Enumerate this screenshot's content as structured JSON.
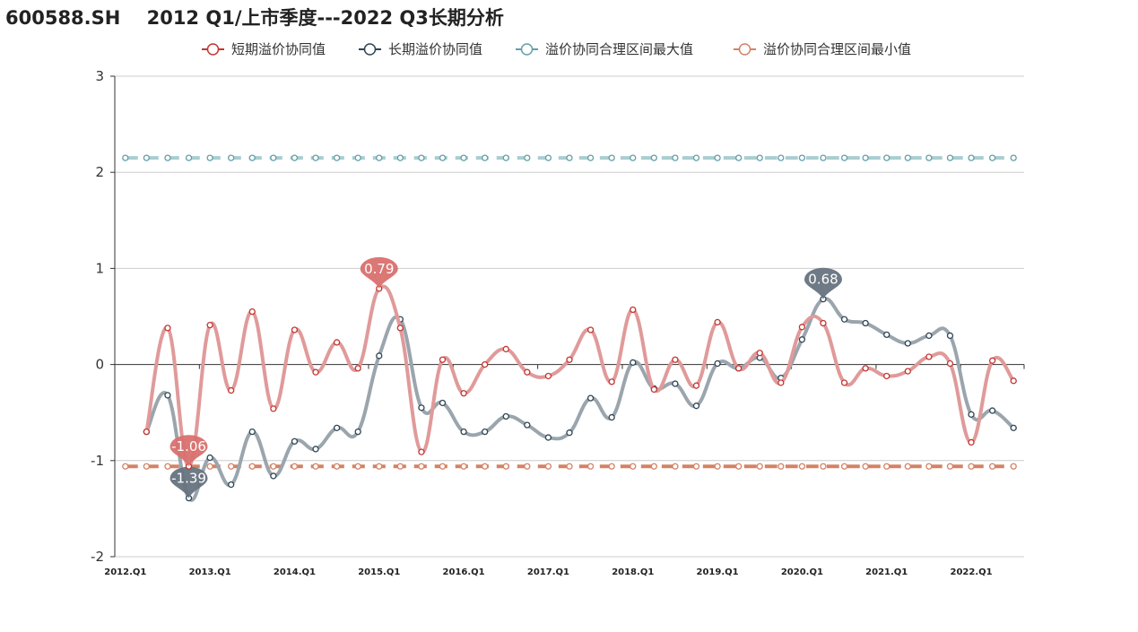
{
  "title": "600588.SH    2012 Q1/上市季度---2022 Q3长期分析",
  "chart_data": {
    "type": "line",
    "title": "600588.SH    2012 Q1/上市季度---2022 Q3长期分析",
    "xlabel": "",
    "ylabel": "",
    "ylim": [
      -2,
      3
    ],
    "yticks": [
      -2,
      -1,
      0,
      1,
      2,
      3
    ],
    "grid": true,
    "legend_position": "top-center",
    "categories": [
      "2012.Q1",
      "2012.Q2",
      "2012.Q3",
      "2012.Q4",
      "2013.Q1",
      "2013.Q2",
      "2013.Q3",
      "2013.Q4",
      "2014.Q1",
      "2014.Q2",
      "2014.Q3",
      "2014.Q4",
      "2015.Q1",
      "2015.Q2",
      "2015.Q3",
      "2015.Q4",
      "2016.Q1",
      "2016.Q2",
      "2016.Q3",
      "2016.Q4",
      "2017.Q1",
      "2017.Q2",
      "2017.Q3",
      "2017.Q4",
      "2018.Q1",
      "2018.Q2",
      "2018.Q3",
      "2018.Q4",
      "2019.Q1",
      "2019.Q2",
      "2019.Q3",
      "2019.Q4",
      "2020.Q1",
      "2020.Q2",
      "2020.Q3",
      "2020.Q4",
      "2021.Q1",
      "2021.Q2",
      "2021.Q3",
      "2021.Q4",
      "2022.Q1",
      "2022.Q2",
      "2022.Q3"
    ],
    "x_tick_labels": [
      "2012.Q1",
      "2013.Q1",
      "2014.Q1",
      "2015.Q1",
      "2016.Q1",
      "2017.Q1",
      "2018.Q1",
      "2019.Q1",
      "2020.Q1",
      "2021.Q1",
      "2022.Q1"
    ],
    "series": [
      {
        "name": "短期溢价协同值",
        "color": "#c23531",
        "line_color": "#e09a9a",
        "dashed": false,
        "values": [
          null,
          -0.7,
          0.38,
          -1.06,
          0.41,
          -0.27,
          0.55,
          -0.46,
          0.36,
          -0.08,
          0.23,
          -0.04,
          0.79,
          0.38,
          -0.91,
          0.05,
          -0.3,
          0.0,
          0.16,
          -0.08,
          -0.12,
          0.05,
          0.36,
          -0.18,
          0.57,
          -0.26,
          0.05,
          -0.22,
          0.44,
          -0.04,
          0.12,
          -0.19,
          0.39,
          0.43,
          -0.19,
          -0.04,
          -0.12,
          -0.07,
          0.08,
          0.01,
          -0.81,
          0.04,
          -0.17
        ],
        "max_label": "0.79",
        "min_label": "-1.06"
      },
      {
        "name": "长期溢价协同值",
        "color": "#2f4554",
        "line_color": "#9aa5ad",
        "dashed": false,
        "values": [
          null,
          -0.7,
          -0.32,
          -1.39,
          -0.97,
          -1.25,
          -0.7,
          -1.16,
          -0.8,
          -0.88,
          -0.66,
          -0.7,
          0.09,
          0.47,
          -0.45,
          -0.4,
          -0.7,
          -0.7,
          -0.54,
          -0.63,
          -0.76,
          -0.71,
          -0.35,
          -0.55,
          0.02,
          -0.25,
          -0.2,
          -0.43,
          0.01,
          -0.04,
          0.07,
          -0.14,
          0.26,
          0.68,
          0.47,
          0.43,
          0.31,
          0.22,
          0.3,
          0.3,
          -0.52,
          -0.48,
          -0.66
        ],
        "max_label": "0.68",
        "min_label": "-1.39"
      },
      {
        "name": "溢价协同合理区间最大值",
        "color": "#61a0a8",
        "line_color": "#a9cdd1",
        "dashed": true,
        "values": [
          2.15,
          2.15,
          2.15,
          2.15,
          2.15,
          2.15,
          2.15,
          2.15,
          2.15,
          2.15,
          2.15,
          2.15,
          2.15,
          2.15,
          2.15,
          2.15,
          2.15,
          2.15,
          2.15,
          2.15,
          2.15,
          2.15,
          2.15,
          2.15,
          2.15,
          2.15,
          2.15,
          2.15,
          2.15,
          2.15,
          2.15,
          2.15,
          2.15,
          2.15,
          2.15,
          2.15,
          2.15,
          2.15,
          2.15,
          2.15,
          2.15,
          2.15,
          2.15
        ]
      },
      {
        "name": "溢价协同合理区间最小值",
        "color": "#d48265",
        "line_color": "#d48265",
        "dashed": true,
        "values": [
          -1.06,
          -1.06,
          -1.06,
          -1.06,
          -1.06,
          -1.06,
          -1.06,
          -1.06,
          -1.06,
          -1.06,
          -1.06,
          -1.06,
          -1.06,
          -1.06,
          -1.06,
          -1.06,
          -1.06,
          -1.06,
          -1.06,
          -1.06,
          -1.06,
          -1.06,
          -1.06,
          -1.06,
          -1.06,
          -1.06,
          -1.06,
          -1.06,
          -1.06,
          -1.06,
          -1.06,
          -1.06,
          -1.06,
          -1.06,
          -1.06,
          -1.06,
          -1.06,
          -1.06,
          -1.06,
          -1.06,
          -1.06,
          -1.06,
          -1.06
        ]
      }
    ]
  }
}
